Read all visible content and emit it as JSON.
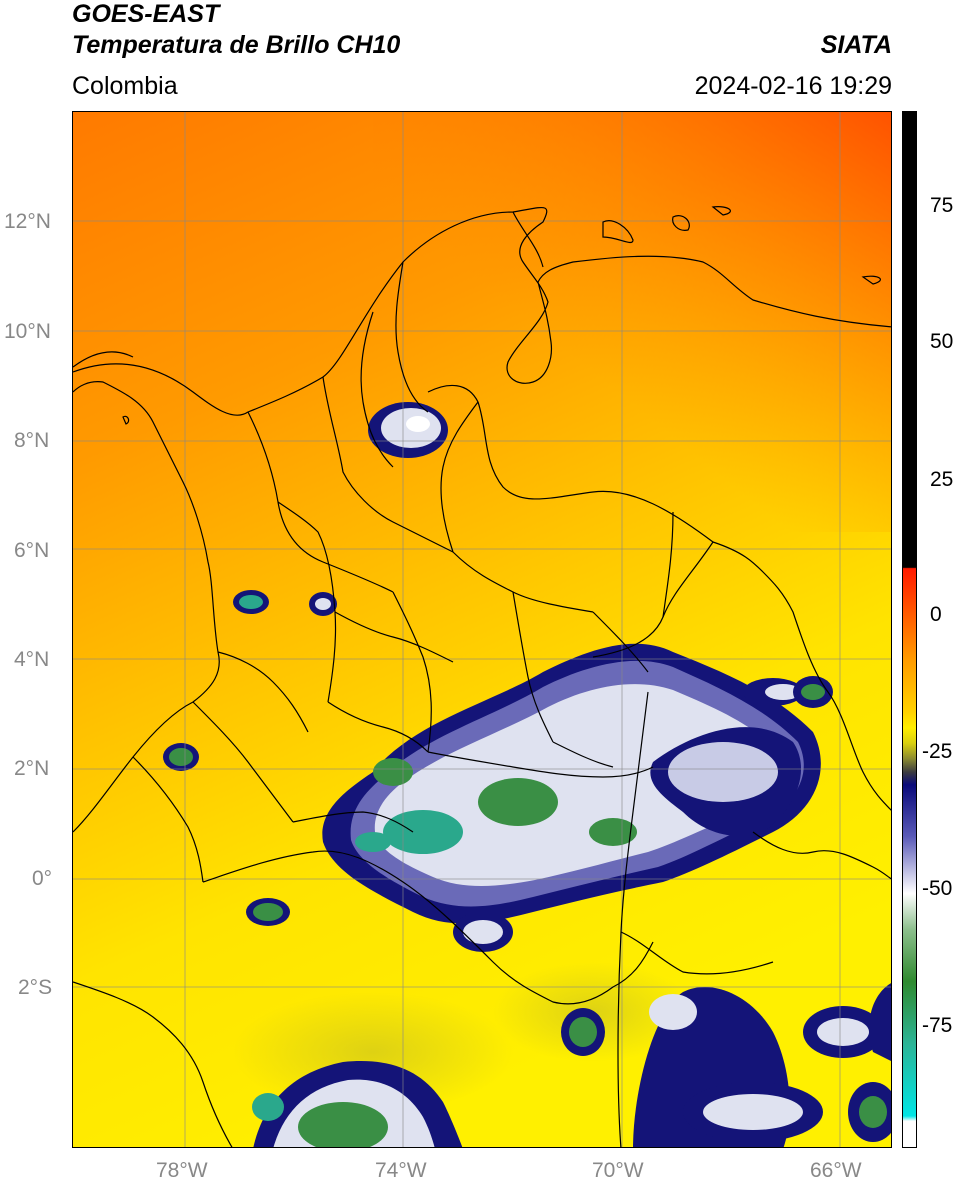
{
  "header": {
    "satellite": "GOES-EAST",
    "product": "Temperatura de Brillo CH10",
    "region": "Colombia",
    "agency": "SIATA",
    "datetime": "2024-02-16 19:29"
  },
  "axes": {
    "latitude_labels": [
      "12°N",
      "10°N",
      "8°N",
      "6°N",
      "4°N",
      "2°N",
      "0°",
      "2°S"
    ],
    "longitude_labels": [
      "78°W",
      "74°W",
      "70°W",
      "66°W"
    ],
    "grid": true
  },
  "colorbar": {
    "labels": [
      "75",
      "50",
      "25",
      "0",
      "-25",
      "-50",
      "-75"
    ],
    "colors": {
      "black": "#000000",
      "red": "#ff2200",
      "orange": "#ff9900",
      "yellow": "#ffee00",
      "olive": "#5a5a20",
      "navy": "#0a0a7a",
      "white": "#ffffff",
      "green": "#2f8a2f",
      "teal": "#2cb496",
      "cyan": "#00e5e5"
    }
  },
  "colors": {
    "map_north": "#ff6a00",
    "map_mid": "#ff9f00",
    "map_south": "#ffe500",
    "cloud_navy": "#1a1a82",
    "cloud_white": "#e8e8f4",
    "cloud_green": "#3a8f45",
    "cloud_teal": "#2aa88c"
  }
}
